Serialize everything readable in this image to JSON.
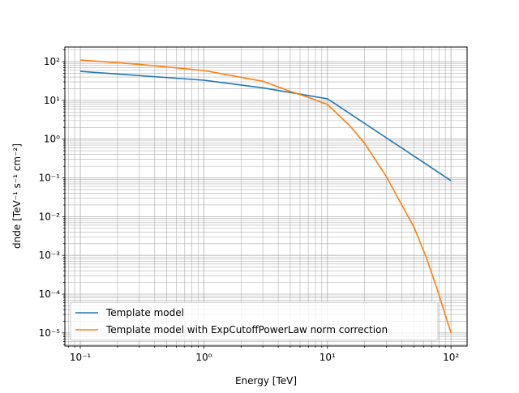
{
  "chart_data": {
    "type": "line",
    "title": "",
    "xlabel": "Energy [TeV]",
    "ylabel": "dnde [TeV⁻¹ s⁻¹ cm⁻²]",
    "xscale": "log",
    "yscale": "log",
    "xlim": [
      0.075,
      135
    ],
    "ylim": [
      4.6e-06,
      238
    ],
    "grid": "major and minor",
    "legend_placement": "lower-left",
    "x_tick_labels": [
      "10⁻¹",
      "10⁰",
      "10¹",
      "10²"
    ],
    "x_ticks": [
      0.1,
      1,
      10,
      100
    ],
    "y_tick_labels": [
      "10⁻⁵",
      "10⁻⁴",
      "10⁻³",
      "10⁻²",
      "10⁻¹",
      "10⁰",
      "10¹",
      "10²"
    ],
    "y_ticks": [
      1e-05,
      0.0001,
      0.001,
      0.01,
      0.1,
      1,
      10,
      100
    ],
    "series": [
      {
        "name": "Template model",
        "color": "#1f77b4",
        "x": [
          0.1,
          1,
          3,
          10,
          100
        ],
        "y": [
          56,
          33,
          21,
          11,
          0.085
        ]
      },
      {
        "name": "Template model with ExpCutoffPowerLaw norm correction",
        "color": "#ff7f0e",
        "x": [
          0.1,
          0.3,
          1,
          3,
          5,
          7,
          10,
          15,
          20,
          30,
          40,
          50,
          63,
          79,
          100
        ],
        "y": [
          110,
          85,
          59,
          31,
          17,
          12,
          7.8,
          2.3,
          0.78,
          0.107,
          0.02,
          0.0055,
          0.0009,
          0.00011,
          1e-05
        ]
      }
    ]
  }
}
